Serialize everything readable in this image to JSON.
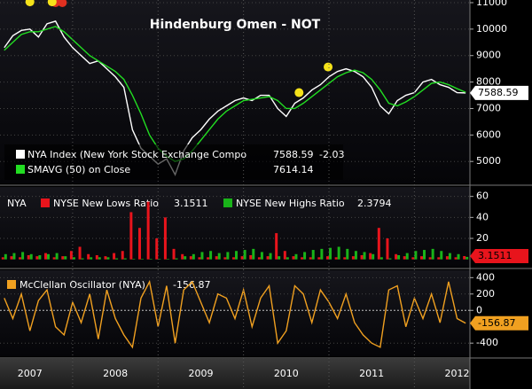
{
  "chart_data": [
    {
      "type": "line",
      "title": "Hindenburg Omen - NOT",
      "x": [
        2007.2,
        2007.3,
        2007.4,
        2007.5,
        2007.6,
        2007.7,
        2007.8,
        2007.9,
        2008.0,
        2008.1,
        2008.2,
        2008.3,
        2008.4,
        2008.5,
        2008.6,
        2008.7,
        2008.8,
        2008.9,
        2009.0,
        2009.1,
        2009.2,
        2009.3,
        2009.4,
        2009.5,
        2009.6,
        2009.7,
        2009.8,
        2009.9,
        2010.0,
        2010.1,
        2010.2,
        2010.3,
        2010.4,
        2010.5,
        2010.6,
        2010.7,
        2010.8,
        2010.9,
        2011.0,
        2011.1,
        2011.2,
        2011.3,
        2011.4,
        2011.5,
        2011.6,
        2011.7,
        2011.8,
        2011.9,
        2012.0,
        2012.1,
        2012.2,
        2012.3,
        2012.4,
        2012.5,
        2012.6
      ],
      "series": [
        {
          "name": "NYA Index (New York Stock Exchange Compo",
          "color": "#ffffff",
          "change": -2.03,
          "values": [
            9300,
            9750,
            9950,
            10000,
            9700,
            10200,
            10300,
            9700,
            9300,
            9000,
            8700,
            8800,
            8500,
            8200,
            7800,
            6200,
            5500,
            5200,
            4900,
            5100,
            4500,
            5400,
            5900,
            6200,
            6600,
            6900,
            7100,
            7300,
            7400,
            7300,
            7500,
            7500,
            7000,
            6700,
            7200,
            7400,
            7700,
            7900,
            8200,
            8400,
            8500,
            8400,
            8200,
            7800,
            7100,
            6800,
            7300,
            7500,
            7600,
            8000,
            8100,
            7900,
            7800,
            7600,
            7588.59
          ]
        },
        {
          "name": "SMAVG (50) on Close",
          "color": "#22dd22",
          "values": [
            9200,
            9500,
            9800,
            9900,
            9900,
            10000,
            10100,
            9900,
            9600,
            9300,
            9000,
            8800,
            8600,
            8400,
            8100,
            7500,
            6800,
            6000,
            5500,
            5200,
            5000,
            5100,
            5400,
            5800,
            6200,
            6600,
            6900,
            7100,
            7300,
            7350,
            7400,
            7450,
            7300,
            7000,
            7000,
            7200,
            7450,
            7700,
            7950,
            8200,
            8350,
            8450,
            8350,
            8100,
            7700,
            7200,
            7100,
            7250,
            7450,
            7700,
            7950,
            8000,
            7900,
            7750,
            7614.14
          ]
        }
      ],
      "markers": [
        {
          "x": 2007.8,
          "y": 11000,
          "color": "#e03020"
        },
        {
          "x": 2007.88,
          "y": 11000,
          "color": "#e03020"
        },
        {
          "x": 2007.5,
          "y": 11030,
          "color": "#f5e21a"
        },
        {
          "x": 2007.76,
          "y": 11030,
          "color": "#f5e21a"
        },
        {
          "x": 2010.65,
          "y": 7600,
          "color": "#f5e21a"
        },
        {
          "x": 2010.99,
          "y": 8570,
          "color": "#f5e21a"
        }
      ],
      "xlim": [
        2007.15,
        2012.65
      ],
      "ylim": [
        4170,
        11100
      ],
      "yticks": [
        5000,
        6000,
        7000,
        8000,
        9000,
        10000,
        11000
      ]
    },
    {
      "type": "bar",
      "label": "NYA",
      "x": [
        2007.2,
        2007.3,
        2007.4,
        2007.5,
        2007.6,
        2007.7,
        2007.8,
        2007.9,
        2008.0,
        2008.1,
        2008.2,
        2008.3,
        2008.4,
        2008.5,
        2008.6,
        2008.7,
        2008.8,
        2008.9,
        2009.0,
        2009.1,
        2009.2,
        2009.3,
        2009.4,
        2009.5,
        2009.6,
        2009.7,
        2009.8,
        2009.9,
        2010.0,
        2010.1,
        2010.2,
        2010.3,
        2010.4,
        2010.5,
        2010.6,
        2010.7,
        2010.8,
        2010.9,
        2011.0,
        2011.1,
        2011.2,
        2011.3,
        2011.4,
        2011.5,
        2011.6,
        2011.7,
        2011.8,
        2011.9,
        2012.0,
        2012.1,
        2012.2,
        2012.3,
        2012.4,
        2012.5,
        2012.6
      ],
      "series": [
        {
          "name": "NYSE New Lows Ratio",
          "color": "#e8141c",
          "values": [
            2,
            3,
            2,
            4,
            3,
            6,
            2,
            3,
            8,
            12,
            5,
            4,
            3,
            6,
            8,
            45,
            30,
            55,
            20,
            40,
            10,
            5,
            3,
            2,
            2,
            3,
            2,
            2,
            3,
            4,
            2,
            3,
            25,
            8,
            3,
            2,
            2,
            2,
            3,
            2,
            2,
            3,
            4,
            6,
            30,
            20,
            5,
            3,
            2,
            3,
            2,
            2,
            3,
            2,
            3.1511
          ]
        },
        {
          "name": "NYSE New Highs Ratio",
          "color": "#19b319",
          "values": [
            5,
            6,
            7,
            5,
            4,
            5,
            6,
            3,
            2,
            1,
            2,
            2,
            2,
            1,
            1,
            0.5,
            0.5,
            0.5,
            0.5,
            0.5,
            1,
            3,
            5,
            7,
            8,
            6,
            7,
            8,
            9,
            10,
            7,
            6,
            3,
            2,
            5,
            7,
            9,
            10,
            11,
            12,
            10,
            8,
            7,
            5,
            2,
            1,
            4,
            6,
            8,
            9,
            10,
            8,
            6,
            5,
            2.3794
          ]
        }
      ],
      "xlim": [
        2007.15,
        2012.65
      ],
      "ylim": [
        -7,
        69
      ],
      "yticks": [
        20,
        40,
        60
      ]
    },
    {
      "type": "line",
      "x": [
        2007.2,
        2007.3,
        2007.4,
        2007.5,
        2007.6,
        2007.7,
        2007.8,
        2007.9,
        2008.0,
        2008.1,
        2008.2,
        2008.3,
        2008.4,
        2008.5,
        2008.6,
        2008.7,
        2008.8,
        2008.9,
        2009.0,
        2009.1,
        2009.2,
        2009.3,
        2009.4,
        2009.5,
        2009.6,
        2009.7,
        2009.8,
        2009.9,
        2010.0,
        2010.1,
        2010.2,
        2010.3,
        2010.4,
        2010.5,
        2010.6,
        2010.7,
        2010.8,
        2010.9,
        2011.0,
        2011.1,
        2011.2,
        2011.3,
        2011.4,
        2011.5,
        2011.6,
        2011.7,
        2011.8,
        2011.9,
        2012.0,
        2012.1,
        2012.2,
        2012.3,
        2012.4,
        2012.5,
        2012.6
      ],
      "series": [
        {
          "name": "McClellan Oscillator (NYA)",
          "color": "#f0a020",
          "values": [
            150,
            -100,
            200,
            -250,
            120,
            250,
            -200,
            -300,
            100,
            -150,
            200,
            -350,
            250,
            -100,
            -300,
            -450,
            150,
            350,
            -200,
            300,
            -400,
            250,
            350,
            100,
            -150,
            200,
            150,
            -100,
            250,
            -200,
            150,
            300,
            -400,
            -250,
            300,
            200,
            -150,
            250,
            100,
            -100,
            200,
            -150,
            -300,
            -400,
            -450,
            250,
            300,
            -200,
            150,
            -100,
            200,
            -150,
            350,
            -100,
            -156.87
          ]
        }
      ],
      "xlim": [
        2007.15,
        2012.65
      ],
      "ylim": [
        -560,
        490
      ],
      "yticks": [
        -400,
        0,
        200,
        400
      ],
      "xticks": [
        {
          "value": 2007.5,
          "label": "2007"
        },
        {
          "value": 2008.5,
          "label": "2008"
        },
        {
          "value": 2009.5,
          "label": "2009"
        },
        {
          "value": 2010.5,
          "label": "2010"
        },
        {
          "value": 2011.5,
          "label": "2011"
        },
        {
          "value": 2012.5,
          "label": "2012"
        }
      ]
    }
  ]
}
